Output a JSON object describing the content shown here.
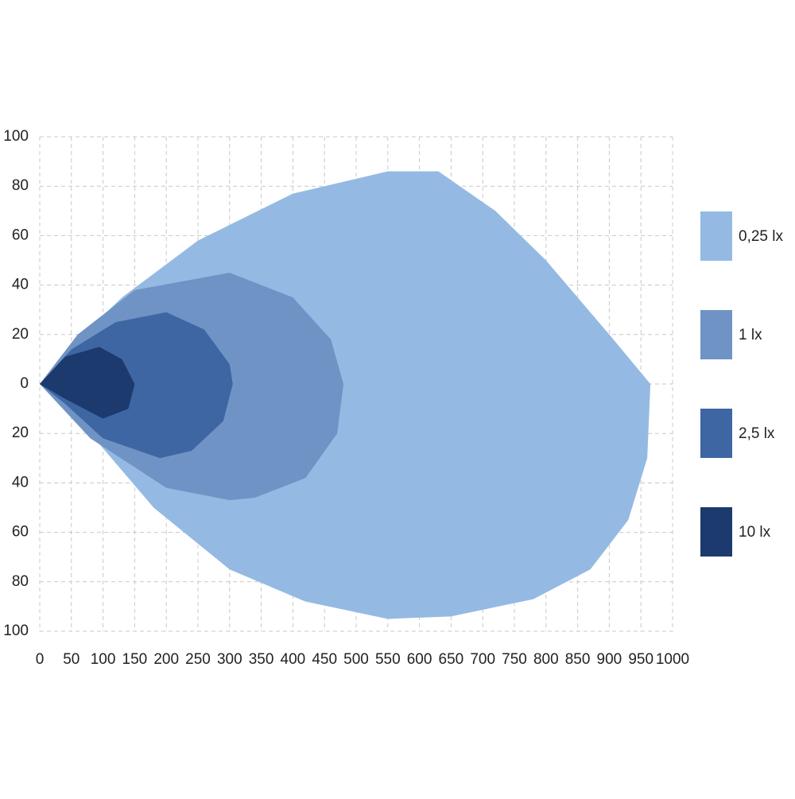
{
  "chart_data": {
    "type": "area",
    "xlim": [
      0,
      1000
    ],
    "xticks": [
      0,
      50,
      100,
      150,
      200,
      250,
      300,
      350,
      400,
      450,
      500,
      550,
      600,
      650,
      700,
      750,
      800,
      850,
      900,
      950,
      1000
    ],
    "ylim": [
      -100,
      100
    ],
    "yticks": [
      100,
      80,
      60,
      40,
      20,
      0,
      {
        "value": -20,
        "label": "20"
      },
      {
        "value": -40,
        "label": "40"
      },
      {
        "value": -60,
        "label": "60"
      },
      {
        "value": -80,
        "label": "80"
      },
      {
        "value": -100,
        "label": "100"
      }
    ],
    "grid": true,
    "legend": "right",
    "series": [
      {
        "name": "0,25 lx",
        "color": "#94bae3",
        "x": [
          0,
          60,
          130,
          250,
          400,
          550,
          630,
          720,
          800,
          900,
          965,
          960,
          930,
          870,
          780,
          650,
          550,
          420,
          300,
          180,
          80
        ],
        "y": [
          0,
          18,
          35,
          58,
          77,
          86,
          86,
          70,
          50,
          20,
          0,
          -30,
          -55,
          -75,
          -87,
          -94,
          -95,
          -88,
          -75,
          -50,
          -20
        ]
      },
      {
        "name": "1 lx",
        "color": "#6f93c4",
        "x": [
          0,
          60,
          150,
          300,
          400,
          460,
          480,
          470,
          420,
          340,
          300,
          200,
          80
        ],
        "y": [
          0,
          20,
          38,
          45,
          35,
          18,
          0,
          -20,
          -38,
          -46,
          -47,
          -42,
          -22
        ]
      },
      {
        "name": "2,5 lx",
        "color": "#3d66a3",
        "x": [
          0,
          50,
          120,
          200,
          260,
          300,
          305,
          290,
          240,
          190,
          100,
          40
        ],
        "y": [
          0,
          14,
          25,
          29,
          22,
          8,
          0,
          -15,
          -27,
          -30,
          -22,
          -8
        ]
      },
      {
        "name": "10 lx",
        "color": "#1c3a6e",
        "x": [
          0,
          40,
          94,
          130,
          150,
          140,
          100,
          40
        ],
        "y": [
          0,
          11,
          15,
          10,
          0,
          -10,
          -14,
          -6
        ]
      }
    ]
  }
}
